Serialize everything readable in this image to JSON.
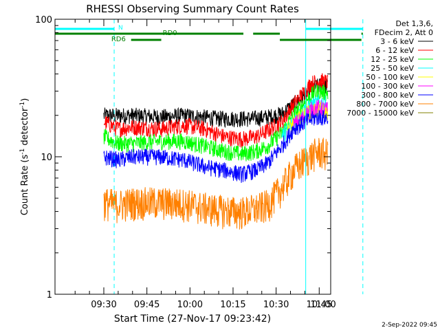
{
  "chart_data": {
    "type": "line",
    "title": "RHESSI Observing Summary Count Rates",
    "xlabel": "Start Time (27-Nov-17 09:23:42)",
    "ylabel": "Count Rate (s⁻¹ detector⁻¹)",
    "ylabel_parts": {
      "main": "Count Rate (s",
      "sup1": "-1",
      "mid": " detector",
      "sup2": "-1",
      "end": ")"
    },
    "y_scale": "log",
    "ylim": [
      1,
      100
    ],
    "yticks": [
      1,
      10,
      100
    ],
    "ytick_labels": [
      "1",
      "10",
      "100"
    ],
    "xlim_minutes": [
      -17,
      79
    ],
    "x_tick_labels": [
      "09:30",
      "09:45",
      "10:00",
      "10:15",
      "10:30",
      "10:45",
      "11:00"
    ],
    "x_tick_minutes": [
      0,
      15,
      30,
      45,
      60,
      75,
      90
    ],
    "legend_placement": "outside-right",
    "legend_header": [
      "Det 1,3,6,",
      "FDecim 2, Att 0"
    ],
    "series": [
      {
        "name": "3 - 6 keV",
        "color": "#000000",
        "points": [
          [
            0,
            20
          ],
          [
            10,
            20
          ],
          [
            20,
            19.5
          ],
          [
            28,
            20
          ],
          [
            40,
            19
          ],
          [
            52,
            19
          ],
          [
            57,
            19.5
          ],
          [
            62,
            20.5
          ],
          [
            66,
            24
          ],
          [
            70,
            28
          ],
          [
            72,
            31
          ],
          [
            75,
            33
          ],
          [
            78,
            33
          ]
        ]
      },
      {
        "name": "6 - 12 keV",
        "color": "#ff0000",
        "points": [
          [
            0,
            18
          ],
          [
            5,
            16
          ],
          [
            10,
            16.5
          ],
          [
            20,
            16
          ],
          [
            28,
            17
          ],
          [
            35,
            16
          ],
          [
            42,
            14
          ],
          [
            48,
            13.5
          ],
          [
            53,
            14
          ],
          [
            57,
            15.5
          ],
          [
            62,
            18
          ],
          [
            66,
            24
          ],
          [
            70,
            30
          ],
          [
            72,
            34
          ],
          [
            75,
            36
          ],
          [
            78,
            35
          ]
        ]
      },
      {
        "name": "12 - 25 keV",
        "color": "#00ff00",
        "points": [
          [
            0,
            14
          ],
          [
            5,
            12.5
          ],
          [
            10,
            12.5
          ],
          [
            20,
            13
          ],
          [
            28,
            13
          ],
          [
            35,
            12
          ],
          [
            42,
            11
          ],
          [
            48,
            10.5
          ],
          [
            53,
            11
          ],
          [
            57,
            12
          ],
          [
            62,
            15
          ],
          [
            66,
            20
          ],
          [
            70,
            25
          ],
          [
            73,
            29
          ],
          [
            75,
            30
          ],
          [
            78,
            29
          ]
        ]
      },
      {
        "name": "25 - 50 keV",
        "color": "#00ffff",
        "points": [
          [
            62,
            14
          ],
          [
            66,
            18
          ],
          [
            70,
            22
          ],
          [
            73,
            24
          ],
          [
            75,
            25
          ],
          [
            78,
            24
          ]
        ]
      },
      {
        "name": "50 - 100 keV",
        "color": "#ffff00",
        "points": [
          [
            64,
            16
          ],
          [
            68,
            19
          ],
          [
            71,
            21
          ],
          [
            74,
            22
          ],
          [
            76,
            22
          ],
          [
            78,
            21
          ]
        ]
      },
      {
        "name": "100 - 300 keV",
        "color": "#ff00ff",
        "points": [
          [
            66,
            17
          ],
          [
            69,
            19
          ],
          [
            72,
            22
          ],
          [
            75,
            23
          ],
          [
            78,
            22
          ]
        ]
      },
      {
        "name": "300 - 800 keV",
        "color": "#0000ff",
        "points": [
          [
            0,
            10
          ],
          [
            5,
            9.5
          ],
          [
            10,
            10
          ],
          [
            20,
            10
          ],
          [
            28,
            9.5
          ],
          [
            35,
            8.5
          ],
          [
            42,
            8
          ],
          [
            48,
            7.5
          ],
          [
            53,
            8
          ],
          [
            57,
            9
          ],
          [
            62,
            12
          ],
          [
            66,
            16
          ],
          [
            70,
            18
          ],
          [
            73,
            19
          ],
          [
            75,
            19.5
          ],
          [
            78,
            19
          ]
        ]
      },
      {
        "name": "800 - 7000 keV",
        "color": "#ff8000",
        "points": [
          [
            0,
            4.7
          ],
          [
            5,
            4.5
          ],
          [
            10,
            4.7
          ],
          [
            20,
            4.7
          ],
          [
            28,
            4.6
          ],
          [
            35,
            4.3
          ],
          [
            42,
            4.1
          ],
          [
            48,
            4
          ],
          [
            53,
            4.2
          ],
          [
            57,
            4.5
          ],
          [
            62,
            6
          ],
          [
            66,
            8
          ],
          [
            70,
            9.5
          ],
          [
            73,
            10.5
          ],
          [
            75,
            11
          ],
          [
            78,
            10.5
          ]
        ]
      },
      {
        "name": "7000 - 15000 keV",
        "color": "#808000",
        "points": []
      }
    ],
    "annotations": {
      "vlines_cyan_solid": [
        -17,
        70.3
      ],
      "vlines_cyan_dashed": [
        3.6,
        90.2
      ],
      "bars": [
        {
          "label": "N",
          "color": "#00ffff",
          "row": 1,
          "segments": [
            [
              -17,
              3.6
            ],
            [
              70.3,
              90.2
            ]
          ]
        },
        {
          "label": "RD0",
          "color": "#008000",
          "row": 2,
          "segments": [
            [
              -17,
              48.6
            ],
            [
              52,
              61.3
            ],
            [
              89.7,
              90.2
            ]
          ]
        },
        {
          "label": "RD6",
          "color": "#008000",
          "row": 3,
          "segments": [
            [
              9.5,
              20
            ],
            [
              61.3,
              89.7
            ]
          ]
        }
      ]
    }
  },
  "footer": {
    "timestamp": "2-Sep-2022 09:45"
  }
}
